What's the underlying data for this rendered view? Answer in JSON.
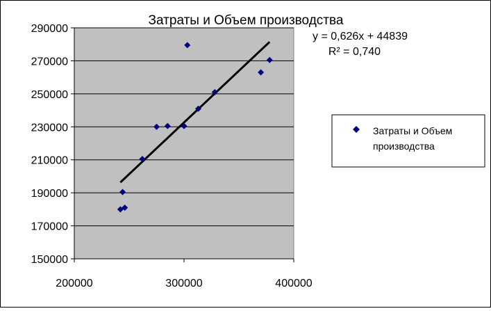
{
  "chart_data": {
    "type": "scatter",
    "title": "Затраты и Объем производства",
    "xlabel": "",
    "ylabel": "",
    "xlim": [
      200000,
      400000
    ],
    "ylim": [
      150000,
      290000
    ],
    "xticks": [
      "200000",
      "300000",
      "400000"
    ],
    "yticks": [
      "150000",
      "170000",
      "190000",
      "210000",
      "230000",
      "250000",
      "270000",
      "290000"
    ],
    "grid": "horizontal",
    "plot_background": "#c0c0c0",
    "legend": {
      "placement": "right",
      "entries": [
        {
          "label_line1": "Затраты и Объем",
          "label_line2": "производства"
        }
      ]
    },
    "series": [
      {
        "color": "#000080",
        "marker": "diamond",
        "points": [
          {
            "x": 242000,
            "y": 180000
          },
          {
            "x": 246000,
            "y": 181000
          },
          {
            "x": 244000,
            "y": 190500
          },
          {
            "x": 262000,
            "y": 210500
          },
          {
            "x": 275000,
            "y": 230000
          },
          {
            "x": 285000,
            "y": 230500
          },
          {
            "x": 300000,
            "y": 230500
          },
          {
            "x": 303000,
            "y": 279500
          },
          {
            "x": 313000,
            "y": 241000
          },
          {
            "x": 328000,
            "y": 251000
          },
          {
            "x": 370000,
            "y": 263000
          },
          {
            "x": 378000,
            "y": 270500
          }
        ]
      }
    ],
    "trendline": {
      "type": "linear",
      "slope": 0.626,
      "intercept": 44839,
      "x_range": [
        242000,
        378000
      ],
      "equation": "y = 0,626x + 44839",
      "r_squared": "R² = 0,740",
      "color": "#000000"
    }
  }
}
